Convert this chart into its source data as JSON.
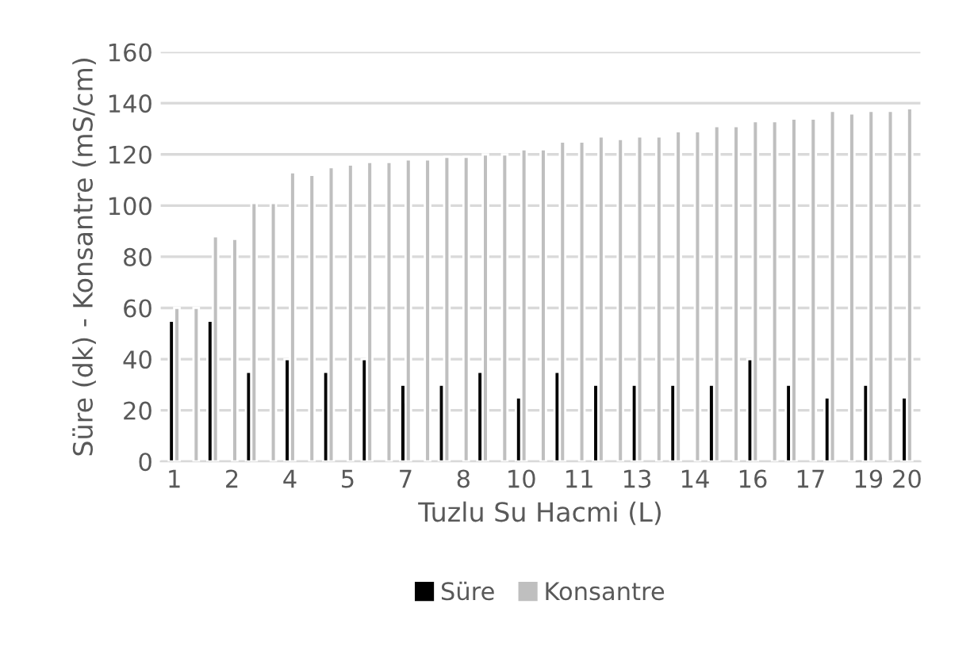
{
  "chart_data": {
    "type": "bar",
    "xlabel": "Tuzlu Su Hacmi (L)",
    "ylabel": "Süre (dk) - Konsantre (mS/cm)",
    "categories": [
      "1",
      null,
      null,
      "2",
      null,
      null,
      "4",
      null,
      null,
      "5",
      null,
      null,
      "7",
      null,
      null,
      "8",
      null,
      null,
      "10",
      null,
      null,
      "11",
      null,
      null,
      "13",
      null,
      null,
      "14",
      null,
      null,
      "16",
      null,
      null,
      "17",
      null,
      null,
      "19",
      null,
      "20"
    ],
    "series": [
      {
        "name": "Süre",
        "color": "#000000",
        "values": [
          55,
          null,
          55,
          null,
          35,
          null,
          40,
          null,
          35,
          null,
          40,
          null,
          30,
          null,
          30,
          null,
          35,
          null,
          25,
          null,
          35,
          null,
          30,
          null,
          30,
          null,
          30,
          null,
          30,
          null,
          40,
          null,
          30,
          null,
          25,
          null,
          30,
          null,
          25
        ]
      },
      {
        "name": "Konsantre",
        "color": "#bfbfbf",
        "values": [
          60,
          60,
          88,
          87,
          101,
          101,
          113,
          112,
          115,
          116,
          117,
          117,
          118,
          118,
          119,
          119,
          120,
          120,
          122,
          122,
          125,
          125,
          127,
          126,
          127,
          127,
          129,
          129,
          131,
          131,
          133,
          133,
          134,
          134,
          137,
          136,
          137,
          137,
          138
        ]
      }
    ],
    "ylim": [
      0,
      160
    ],
    "yticks": [
      0,
      20,
      40,
      60,
      80,
      100,
      120,
      140,
      160
    ],
    "grid": "y",
    "legend": "bottom"
  }
}
